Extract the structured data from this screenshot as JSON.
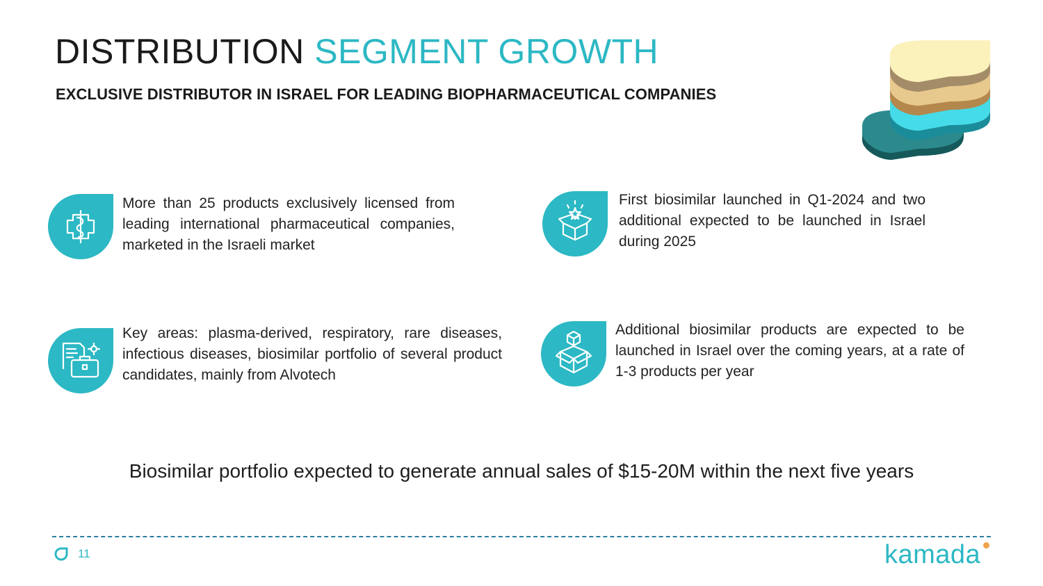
{
  "header": {
    "title_part1": "DISTRIBUTION",
    "title_part2": "SEGMENT GROWTH",
    "subtitle": "EXCLUSIVE DISTRIBUTOR IN ISRAEL FOR LEADING BIOPHARMACEUTICAL COMPANIES"
  },
  "features": [
    {
      "icon": "caduceus-icon",
      "text": "More than 25 products exclusively licensed from leading international pharmaceutical companies, marketed in the Israeli market"
    },
    {
      "icon": "box-launch-icon",
      "text": "First biosimilar launched in Q1-2024 and two additional expected to be launched in Israel during 2025"
    },
    {
      "icon": "briefcase-documents-icon",
      "text": "Key areas: plasma-derived, respiratory, rare diseases, infectious diseases, biosimilar portfolio of several product candidates, mainly from Alvotech"
    },
    {
      "icon": "boxes-icon",
      "text": "Additional biosimilar products are expected to be launched in Israel over the coming years, at a rate of 1-3 products per year"
    }
  ],
  "tagline": "Biosimilar portfolio expected to generate annual sales of $15-20M within the next five years",
  "footer": {
    "page_number": "11",
    "logo_text": "kamada"
  },
  "colors": {
    "accent": "#2cb8c4",
    "dark_teal": "#1f7a7c",
    "logo_dot": "#f0a24a",
    "divider": "#2a7fa0"
  }
}
